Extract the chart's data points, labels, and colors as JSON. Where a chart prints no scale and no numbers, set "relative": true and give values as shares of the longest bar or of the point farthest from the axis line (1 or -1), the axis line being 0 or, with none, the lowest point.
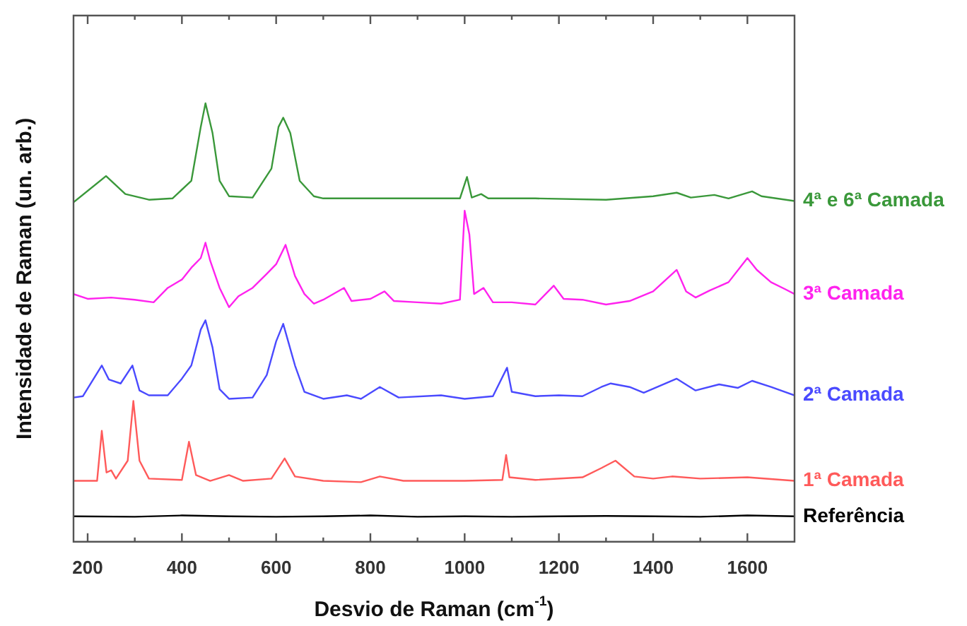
{
  "chart_data": {
    "type": "line",
    "xlabel": "Desvio de Raman (cm$^{-1}$)",
    "ylabel": "Intensidade de Raman (un. arb.)",
    "relative": true,
    "xlim": [
      170,
      1700
    ],
    "xticks": [
      200,
      {
        "value": 300,
        "label": null
      },
      400,
      {
        "value": 500,
        "label": null
      },
      600,
      {
        "value": 700,
        "label": null
      },
      800,
      {
        "value": 900,
        "label": null
      },
      1000,
      {
        "value": 1100,
        "label": null
      },
      1200,
      {
        "value": 1300,
        "label": null
      },
      1400,
      {
        "value": 1500,
        "label": null
      },
      1600
    ],
    "grid": false,
    "legend": false,
    "marker": "none",
    "line_style": "solid",
    "series": [
      {
        "name": "4ª e 6ª Camada",
        "color": "#3a983a",
        "x": [
          170,
          239,
          280,
          330,
          380,
          420,
          440,
          450,
          465,
          480,
          500,
          550,
          590,
          605,
          615,
          630,
          650,
          680,
          700,
          800,
          900,
          990,
          1005,
          1015,
          1035,
          1050,
          1150,
          1300,
          1400,
          1450,
          1480,
          1530,
          1560,
          1610,
          1630,
          1700
        ],
        "values": [
          0.774,
          0.834,
          0.793,
          0.78,
          0.783,
          0.823,
          0.946,
          1.0,
          0.932,
          0.823,
          0.788,
          0.785,
          0.851,
          0.946,
          0.967,
          0.932,
          0.823,
          0.788,
          0.783,
          0.783,
          0.783,
          0.783,
          0.832,
          0.785,
          0.793,
          0.783,
          0.783,
          0.78,
          0.788,
          0.796,
          0.785,
          0.791,
          0.783,
          0.799,
          0.788,
          0.777
        ]
      },
      {
        "name": "3ª Camada",
        "color": "#ff22ee",
        "x": [
          170,
          200,
          250,
          300,
          340,
          370,
          400,
          420,
          440,
          450,
          460,
          480,
          500,
          520,
          550,
          580,
          600,
          620,
          640,
          660,
          680,
          700,
          744,
          760,
          800,
          830,
          850,
          900,
          950,
          990,
          1000,
          1010,
          1020,
          1040,
          1060,
          1100,
          1150,
          1189,
          1210,
          1250,
          1300,
          1350,
          1400,
          1450,
          1470,
          1490,
          1520,
          1560,
          1600,
          1620,
          1650,
          1680,
          1700
        ],
        "values": [
          0.565,
          0.554,
          0.557,
          0.552,
          0.546,
          0.579,
          0.598,
          0.625,
          0.647,
          0.682,
          0.641,
          0.579,
          0.535,
          0.56,
          0.579,
          0.611,
          0.633,
          0.677,
          0.606,
          0.565,
          0.543,
          0.552,
          0.579,
          0.549,
          0.554,
          0.571,
          0.549,
          0.546,
          0.543,
          0.552,
          0.755,
          0.701,
          0.565,
          0.579,
          0.546,
          0.546,
          0.541,
          0.584,
          0.554,
          0.552,
          0.541,
          0.549,
          0.571,
          0.62,
          0.571,
          0.557,
          0.573,
          0.592,
          0.647,
          0.62,
          0.592,
          0.576,
          0.565
        ]
      },
      {
        "name": "2ª Camada",
        "color": "#4a4aff",
        "x": [
          170,
          190,
          230,
          245,
          270,
          295,
          310,
          330,
          370,
          400,
          420,
          440,
          450,
          465,
          480,
          500,
          550,
          580,
          600,
          615,
          640,
          660,
          700,
          750,
          780,
          820,
          860,
          950,
          1000,
          1060,
          1090,
          1100,
          1150,
          1200,
          1250,
          1290,
          1310,
          1350,
          1380,
          1450,
          1490,
          1540,
          1580,
          1610,
          1650,
          1700
        ],
        "values": [
          0.329,
          0.332,
          0.402,
          0.37,
          0.361,
          0.402,
          0.345,
          0.334,
          0.334,
          0.372,
          0.402,
          0.484,
          0.505,
          0.443,
          0.348,
          0.326,
          0.329,
          0.38,
          0.457,
          0.497,
          0.402,
          0.342,
          0.326,
          0.334,
          0.326,
          0.353,
          0.329,
          0.334,
          0.326,
          0.332,
          0.397,
          0.342,
          0.332,
          0.334,
          0.332,
          0.353,
          0.361,
          0.353,
          0.34,
          0.372,
          0.345,
          0.359,
          0.351,
          0.367,
          0.353,
          0.334
        ]
      },
      {
        "name": "1ª Camada",
        "color": "#ff5a5a",
        "x": [
          170,
          220,
          230,
          240,
          250,
          260,
          285,
          297,
          310,
          330,
          400,
          415,
          430,
          460,
          500,
          530,
          590,
          618,
          640,
          700,
          780,
          820,
          870,
          1000,
          1080,
          1088,
          1095,
          1150,
          1250,
          1290,
          1320,
          1360,
          1400,
          1440,
          1500,
          1600,
          1700
        ],
        "values": [
          0.139,
          0.139,
          0.253,
          0.158,
          0.163,
          0.144,
          0.185,
          0.321,
          0.185,
          0.144,
          0.141,
          0.228,
          0.152,
          0.139,
          0.152,
          0.139,
          0.144,
          0.19,
          0.149,
          0.139,
          0.136,
          0.149,
          0.139,
          0.139,
          0.141,
          0.198,
          0.147,
          0.141,
          0.147,
          0.168,
          0.185,
          0.149,
          0.144,
          0.149,
          0.144,
          0.147,
          0.139
        ]
      },
      {
        "name": "Referência",
        "color": "#000000",
        "x": [
          170,
          300,
          400,
          500,
          600,
          700,
          800,
          900,
          1000,
          1100,
          1200,
          1300,
          1400,
          1500,
          1600,
          1700
        ],
        "values": [
          0.058,
          0.057,
          0.06,
          0.058,
          0.057,
          0.058,
          0.06,
          0.057,
          0.058,
          0.057,
          0.058,
          0.059,
          0.058,
          0.057,
          0.06,
          0.058
        ]
      }
    ]
  }
}
